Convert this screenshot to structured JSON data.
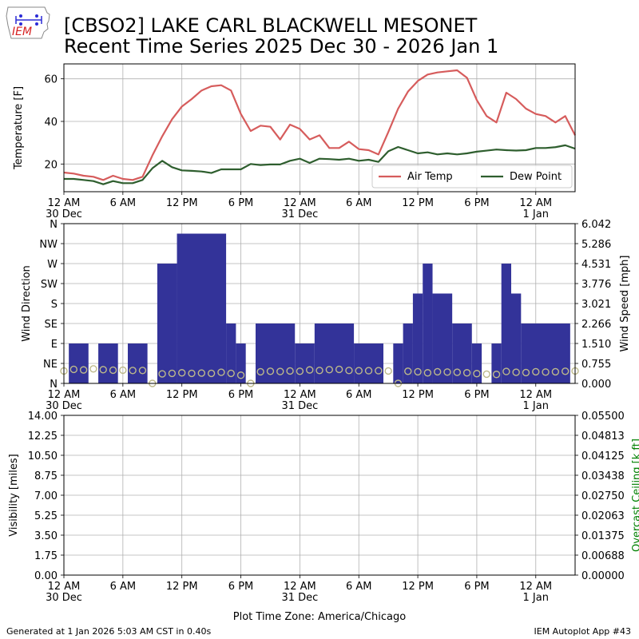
{
  "header": {
    "logo_text": "IEM",
    "title_line1": "[CBSO2] LAKE CARL BLACKWELL MESONET",
    "title_line2": "Recent Time Series 2025 Dec 30 - 2026 Jan 1"
  },
  "footer": {
    "generated": "Generated at 1 Jan 2026 5:03 AM CST in 0.40s",
    "app": "IEM Autoplot App #43"
  },
  "colors": {
    "air_temp": "#d65c5c",
    "dew_point": "#2e5e2e",
    "wind_bar": "#333399",
    "gust_marker": "#bdb98a",
    "ceiling_label": "#008000",
    "grid": "#b0b0b0"
  },
  "x_axis": {
    "ticks": [
      {
        "hour": 0,
        "label": "12 AM",
        "sub": "30 Dec"
      },
      {
        "hour": 6,
        "label": "6 AM",
        "sub": ""
      },
      {
        "hour": 12,
        "label": "12 PM",
        "sub": ""
      },
      {
        "hour": 18,
        "label": "6 PM",
        "sub": ""
      },
      {
        "hour": 24,
        "label": "12 AM",
        "sub": "31 Dec"
      },
      {
        "hour": 30,
        "label": "6 AM",
        "sub": ""
      },
      {
        "hour": 36,
        "label": "12 PM",
        "sub": ""
      },
      {
        "hour": 42,
        "label": "6 PM",
        "sub": ""
      },
      {
        "hour": 48,
        "label": "12 AM",
        "sub": "1 Jan"
      }
    ],
    "range_hours": [
      0,
      52
    ],
    "timezone_label": "Plot Time Zone: America/Chicago"
  },
  "chart_data": [
    {
      "type": "line",
      "ylabel": "Temperature [F]",
      "ylim": [
        7,
        67
      ],
      "yticks": [
        20,
        40,
        60
      ],
      "grid": true,
      "legend_placement": "lower-right",
      "x": [
        0,
        1,
        2,
        3,
        4,
        5,
        6,
        7,
        8,
        9,
        10,
        11,
        12,
        13,
        14,
        15,
        16,
        17,
        18,
        19,
        20,
        21,
        22,
        23,
        24,
        25,
        26,
        27,
        28,
        29,
        30,
        31,
        32,
        33,
        34,
        35,
        36,
        37,
        38,
        39,
        40,
        41,
        42,
        43,
        44,
        45,
        46,
        47,
        48,
        49,
        50,
        51,
        52
      ],
      "series": [
        {
          "name": "Air Temp",
          "values": [
            16,
            15.5,
            14.5,
            14,
            12.5,
            14.5,
            13,
            12.5,
            14,
            24,
            33,
            41,
            47,
            50.5,
            54.5,
            56.5,
            57,
            54.5,
            43.5,
            35.5,
            38,
            37.5,
            31.5,
            38.5,
            36.5,
            31.5,
            33.5,
            27.5,
            27.5,
            30.5,
            27,
            26.5,
            24.5,
            35,
            46,
            54,
            59,
            62,
            63,
            63.5,
            64,
            60.5,
            50,
            42.5,
            39.5,
            53.5,
            50.5,
            46,
            43.5,
            42.5,
            39.5,
            42.5,
            33.5
          ]
        },
        {
          "name": "Dew Point",
          "values": [
            13,
            13,
            12.5,
            12,
            10.5,
            12,
            11,
            11,
            12.5,
            18,
            21.5,
            18.5,
            17,
            16.8,
            16.5,
            15.8,
            17.5,
            17.5,
            17.5,
            20,
            19.5,
            19.8,
            19.8,
            21.5,
            22.5,
            20.5,
            22.5,
            22.3,
            22,
            22.5,
            21.5,
            22,
            21,
            26,
            28,
            26.5,
            25,
            25.5,
            24.5,
            25,
            24.5,
            25,
            25.8,
            26.3,
            26.8,
            26.5,
            26.3,
            26.5,
            27.5,
            27.5,
            27.9,
            28.8,
            27.2
          ]
        }
      ]
    },
    {
      "type": "bar",
      "ylabel": "Wind Direction",
      "y2label": "Wind Speed [mph]",
      "direction_ticks": [
        "N",
        "NE",
        "E",
        "SE",
        "S",
        "SW",
        "W",
        "NW",
        "N"
      ],
      "speed_ticks": [
        "0.000",
        "0.755",
        "1.510",
        "2.266",
        "3.021",
        "3.776",
        "4.531",
        "5.286",
        "6.042"
      ],
      "ylim_speed": [
        0,
        6.042
      ],
      "grid": true,
      "bars": [
        {
          "x0": 0.5,
          "x1": 2.5,
          "speed": 1.51
        },
        {
          "x0": 3.5,
          "x1": 5.5,
          "speed": 1.51
        },
        {
          "x0": 6.5,
          "x1": 8.5,
          "speed": 1.51
        },
        {
          "x0": 9.5,
          "x1": 11.5,
          "speed": 4.531
        },
        {
          "x0": 11.5,
          "x1": 16.5,
          "speed": 5.664
        },
        {
          "x0": 16.5,
          "x1": 17.5,
          "speed": 2.266
        },
        {
          "x0": 17.5,
          "x1": 18.5,
          "speed": 1.51
        },
        {
          "x0": 19.5,
          "x1": 23.5,
          "speed": 2.266
        },
        {
          "x0": 23.5,
          "x1": 25.5,
          "speed": 1.51
        },
        {
          "x0": 25.5,
          "x1": 29.5,
          "speed": 2.266
        },
        {
          "x0": 29.5,
          "x1": 32.5,
          "speed": 1.51
        },
        {
          "x0": 33.5,
          "x1": 34.5,
          "speed": 1.51
        },
        {
          "x0": 34.5,
          "x1": 35.5,
          "speed": 2.266
        },
        {
          "x0": 35.5,
          "x1": 36.5,
          "speed": 3.399
        },
        {
          "x0": 36.5,
          "x1": 37.5,
          "speed": 4.531
        },
        {
          "x0": 37.5,
          "x1": 39.5,
          "speed": 3.399
        },
        {
          "x0": 39.5,
          "x1": 41.5,
          "speed": 2.266
        },
        {
          "x0": 41.5,
          "x1": 42.5,
          "speed": 1.51
        },
        {
          "x0": 43.5,
          "x1": 44.5,
          "speed": 1.51
        },
        {
          "x0": 44.5,
          "x1": 45.5,
          "speed": 4.531
        },
        {
          "x0": 45.5,
          "x1": 46.5,
          "speed": 3.399
        },
        {
          "x0": 46.5,
          "x1": 51.5,
          "speed": 2.266
        }
      ],
      "markers_x": [
        0,
        1,
        2,
        3,
        4,
        5,
        6,
        7,
        8,
        9,
        10,
        11,
        12,
        13,
        14,
        15,
        16,
        17,
        18,
        19,
        20,
        21,
        22,
        23,
        24,
        25,
        26,
        27,
        28,
        29,
        30,
        31,
        32,
        33,
        34,
        35,
        36,
        37,
        38,
        39,
        40,
        41,
        42,
        43,
        44,
        45,
        46,
        47,
        48,
        49,
        50,
        51,
        52
      ],
      "markers_speed": [
        0.47,
        0.53,
        0.51,
        0.55,
        0.52,
        0.5,
        0.5,
        0.49,
        0.49,
        0,
        0.36,
        0.38,
        0.4,
        0.38,
        0.39,
        0.38,
        0.42,
        0.38,
        0.31,
        0,
        0.44,
        0.46,
        0.45,
        0.47,
        0.46,
        0.51,
        0.49,
        0.52,
        0.53,
        0.49,
        0.48,
        0.48,
        0.48,
        0.47,
        0,
        0.46,
        0.44,
        0.4,
        0.44,
        0.43,
        0.42,
        0.4,
        0.37,
        0.35,
        0.34,
        0.45,
        0.42,
        0.41,
        0.44,
        0.43,
        0.44,
        0.46,
        0.47
      ]
    },
    {
      "type": "line",
      "ylabel": "Visibility [miles]",
      "y2label": "Overcast Ceiling [k ft]",
      "yticks": [
        "0.00",
        "1.75",
        "3.50",
        "5.25",
        "7.00",
        "8.75",
        "10.50",
        "12.25",
        "14.00"
      ],
      "y2ticks": [
        "0.00000",
        "0.00688",
        "0.01375",
        "0.02063",
        "0.02750",
        "0.03438",
        "0.04125",
        "0.04813",
        "0.05500"
      ],
      "ylim": [
        0,
        14
      ],
      "y2lim": [
        0,
        0.055
      ],
      "grid": true,
      "series": []
    }
  ]
}
